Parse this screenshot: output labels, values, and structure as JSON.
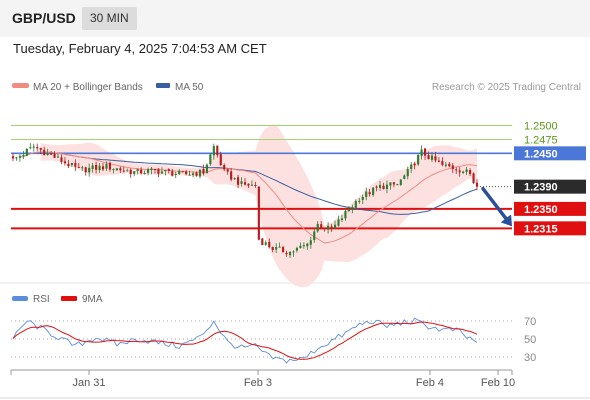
{
  "header": {
    "symbol": "GBP/USD",
    "timeframe": "30 MIN",
    "datetime": "Tuesday, February 4, 2025 7:04:53 AM CET"
  },
  "legend": {
    "ma20_label": "MA 20 + Bollinger Bands",
    "ma50_label": "MA 50",
    "credit": "Research © 2025 Trading Central"
  },
  "colors": {
    "bull": "#2e7d32",
    "bear": "#b71c1c",
    "ma20": "#f28b82",
    "ma50": "#3a5fa0",
    "bb_fill": "#fde0e0",
    "support_line": "#e01010",
    "resistance_blue": "#4b78d8",
    "resistance_green": "#a5d46a",
    "green_text": "#5a9a1a",
    "rsi": "#5b8ddd",
    "rsi_ma": "#e01010",
    "arrow": "#2a4f9c"
  },
  "chart_data": [
    {
      "type": "candlestick",
      "title": "GBP/USD 30 MIN",
      "x_tick_labels": [
        "Jan 31",
        "Feb 3",
        "Feb 4",
        "Feb 10"
      ],
      "ylim": [
        1.2222,
        1.2546
      ],
      "levels": [
        {
          "value": 1.25,
          "label": "1.2500",
          "style": "green-thin"
        },
        {
          "value": 1.2475,
          "label": "1.2475",
          "style": "green-thin"
        },
        {
          "value": 1.245,
          "label": "1.2450",
          "style": "blue"
        },
        {
          "value": 1.239,
          "label": "1.2390",
          "style": "current-price"
        },
        {
          "value": 1.235,
          "label": "1.2350",
          "style": "red-support"
        },
        {
          "value": 1.2315,
          "label": "1.2315",
          "style": "red-support"
        }
      ],
      "last_price": 1.239,
      "forecast_arrow": {
        "from": 1.239,
        "to": 1.2315
      },
      "series": [
        {
          "name": "MA 20 + Bollinger Bands"
        },
        {
          "name": "MA 50"
        }
      ],
      "key_points": [
        {
          "t": 0,
          "v": 1.2438
        },
        {
          "t": 6,
          "v": 1.2462
        },
        {
          "t": 13,
          "v": 1.244
        },
        {
          "t": 19,
          "v": 1.242
        },
        {
          "t": 27,
          "v": 1.2426
        },
        {
          "t": 35,
          "v": 1.2416
        },
        {
          "t": 41,
          "v": 1.2419
        },
        {
          "t": 49,
          "v": 1.2412
        },
        {
          "t": 55,
          "v": 1.2416
        },
        {
          "t": 58,
          "v": 1.2462
        },
        {
          "t": 61,
          "v": 1.2416
        },
        {
          "t": 66,
          "v": 1.2394
        },
        {
          "t": 70,
          "v": 1.2392
        },
        {
          "t": 71,
          "v": 1.2295
        },
        {
          "t": 75,
          "v": 1.2279
        },
        {
          "t": 80,
          "v": 1.2272
        },
        {
          "t": 85,
          "v": 1.2286
        },
        {
          "t": 88,
          "v": 1.2322
        },
        {
          "t": 92,
          "v": 1.2312
        },
        {
          "t": 96,
          "v": 1.2342
        },
        {
          "t": 100,
          "v": 1.237
        },
        {
          "t": 106,
          "v": 1.239
        },
        {
          "t": 111,
          "v": 1.2394
        },
        {
          "t": 114,
          "v": 1.2416
        },
        {
          "t": 118,
          "v": 1.2452
        },
        {
          "t": 124,
          "v": 1.2428
        },
        {
          "t": 128,
          "v": 1.2423
        },
        {
          "t": 132,
          "v": 1.2414
        },
        {
          "t": 134,
          "v": 1.2384
        }
      ]
    },
    {
      "type": "line",
      "title": "RSI",
      "series": [
        {
          "name": "RSI"
        },
        {
          "name": "9MA"
        }
      ],
      "ylim": [
        20,
        80
      ],
      "y_tick_labels": [
        "70",
        "50",
        "30"
      ],
      "y_ticks": [
        70,
        50,
        30
      ],
      "key_points": [
        {
          "t": 0,
          "v": 50
        },
        {
          "t": 4,
          "v": 70
        },
        {
          "t": 8,
          "v": 62
        },
        {
          "t": 13,
          "v": 52
        },
        {
          "t": 18,
          "v": 42
        },
        {
          "t": 24,
          "v": 52
        },
        {
          "t": 30,
          "v": 44
        },
        {
          "t": 36,
          "v": 50
        },
        {
          "t": 42,
          "v": 46
        },
        {
          "t": 48,
          "v": 42
        },
        {
          "t": 54,
          "v": 52
        },
        {
          "t": 58,
          "v": 70
        },
        {
          "t": 62,
          "v": 46
        },
        {
          "t": 66,
          "v": 40
        },
        {
          "t": 70,
          "v": 42
        },
        {
          "t": 74,
          "v": 30
        },
        {
          "t": 78,
          "v": 26
        },
        {
          "t": 84,
          "v": 28
        },
        {
          "t": 88,
          "v": 40
        },
        {
          "t": 92,
          "v": 48
        },
        {
          "t": 96,
          "v": 56
        },
        {
          "t": 100,
          "v": 66
        },
        {
          "t": 104,
          "v": 70
        },
        {
          "t": 108,
          "v": 64
        },
        {
          "t": 112,
          "v": 68
        },
        {
          "t": 116,
          "v": 70
        },
        {
          "t": 120,
          "v": 64
        },
        {
          "t": 124,
          "v": 60
        },
        {
          "t": 128,
          "v": 60
        },
        {
          "t": 131,
          "v": 52
        },
        {
          "t": 134,
          "v": 47
        }
      ]
    }
  ]
}
